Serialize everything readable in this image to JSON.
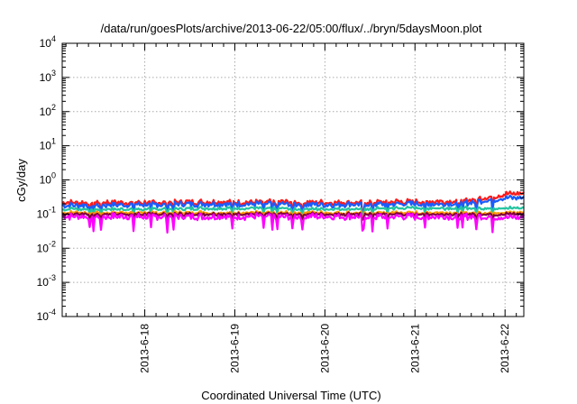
{
  "chart_data": {
    "type": "line",
    "title": "/data/run/goesPlots/archive/2013-06-22/05:00/flux/../bryn/5daysMoon.plot",
    "xlabel": "Coordinated Universal Time (UTC)",
    "ylabel": "cGy/day",
    "yscale": "log",
    "ylim": [
      0.0001,
      10000
    ],
    "y_ticks": [
      {
        "base": "10",
        "exp": "-4",
        "value": 0.0001
      },
      {
        "base": "10",
        "exp": "-3",
        "value": 0.001
      },
      {
        "base": "10",
        "exp": "-2",
        "value": 0.01
      },
      {
        "base": "10",
        "exp": "-1",
        "value": 0.1
      },
      {
        "base": "10",
        "exp": "0",
        "value": 1
      },
      {
        "base": "10",
        "exp": "1",
        "value": 10
      },
      {
        "base": "10",
        "exp": "2",
        "value": 100
      },
      {
        "base": "10",
        "exp": "3",
        "value": 1000
      },
      {
        "base": "10",
        "exp": "4",
        "value": 10000
      }
    ],
    "x_range": [
      "2013-06-17 02:00",
      "2013-06-22 05:00"
    ],
    "x_ticks": [
      "2013-6-18",
      "2013-6-19",
      "2013-6-20",
      "2013-6-21",
      "2013-6-22"
    ],
    "grid": true,
    "legend": "none",
    "x": [
      "2013-06-17 02:00",
      "2013-06-18 00:00",
      "2013-06-19 00:00",
      "2013-06-20 00:00",
      "2013-06-21 00:00",
      "2013-06-21 12:00",
      "2013-06-21 18:00",
      "2013-06-22 00:00",
      "2013-06-22 05:00"
    ],
    "series": [
      {
        "color": "#ff1a1a",
        "values": [
          0.22,
          0.22,
          0.23,
          0.22,
          0.23,
          0.24,
          0.3,
          0.38,
          0.4
        ]
      },
      {
        "color": "#1a5cff",
        "values": [
          0.18,
          0.19,
          0.2,
          0.19,
          0.2,
          0.2,
          0.25,
          0.3,
          0.3
        ]
      },
      {
        "color": "#22c4a0",
        "values": [
          0.14,
          0.14,
          0.15,
          0.14,
          0.15,
          0.15,
          0.15,
          0.15,
          0.15
        ]
      },
      {
        "color": "#ff9900",
        "values": [
          0.11,
          0.11,
          0.11,
          0.11,
          0.11,
          0.11,
          0.11,
          0.11,
          0.11
        ]
      },
      {
        "color": "#800040",
        "values": [
          0.1,
          0.1,
          0.1,
          0.1,
          0.1,
          0.1,
          0.1,
          0.1,
          0.1
        ]
      },
      {
        "color": "#ff00ff",
        "values": [
          0.085,
          0.085,
          0.085,
          0.085,
          0.085,
          0.085,
          0.085,
          0.08,
          0.08
        ]
      }
    ]
  }
}
